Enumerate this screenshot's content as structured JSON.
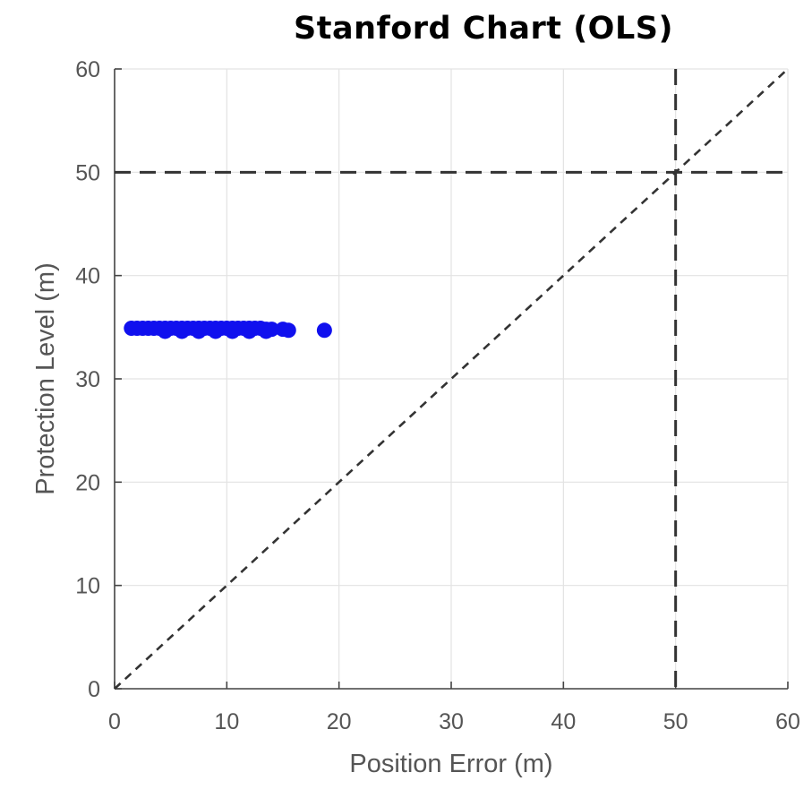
{
  "chart_data": {
    "type": "scatter",
    "title": "Stanford Chart (OLS)",
    "xlabel": "Position Error (m)",
    "ylabel": "Protection Level (m)",
    "xlim": [
      0,
      60
    ],
    "ylim": [
      0,
      60
    ],
    "xticks": [
      0,
      10,
      20,
      30,
      40,
      50,
      60
    ],
    "yticks": [
      0,
      10,
      20,
      30,
      40,
      50,
      60
    ],
    "grid": true,
    "colors": {
      "points": "#1010ee",
      "reference_lines": "#333333",
      "grid": "#e3e3e3",
      "axis": "#444444"
    },
    "reference_lines": [
      {
        "kind": "diagonal",
        "from": [
          0,
          0
        ],
        "to": [
          60,
          60
        ],
        "style": "dashed"
      },
      {
        "kind": "horizontal",
        "y": 50,
        "style": "dashed"
      },
      {
        "kind": "vertical",
        "x": 50,
        "style": "dashed"
      }
    ],
    "series": [
      {
        "x": [
          1.5,
          2.0,
          2.5,
          3.0,
          3.5,
          4.0,
          4.5,
          5.0,
          5.5,
          6.0,
          6.5,
          7.0,
          7.5,
          8.0,
          8.5,
          9.0,
          9.5,
          10.0,
          10.5,
          11.0,
          11.5,
          12.0,
          12.5,
          13.0,
          13.5,
          14.0,
          15.0,
          15.5,
          18.7,
          4.5,
          6.0,
          7.5,
          9.0,
          10.5,
          12.0,
          13.5
        ],
        "y": [
          34.9,
          34.9,
          34.9,
          34.9,
          34.9,
          34.9,
          34.9,
          34.9,
          34.9,
          34.9,
          34.9,
          34.9,
          34.9,
          34.9,
          34.9,
          34.9,
          34.9,
          34.9,
          34.9,
          34.9,
          34.9,
          34.9,
          34.9,
          34.9,
          34.8,
          34.8,
          34.8,
          34.7,
          34.7,
          34.6,
          34.6,
          34.6,
          34.6,
          34.6,
          34.6,
          34.6
        ]
      }
    ]
  }
}
